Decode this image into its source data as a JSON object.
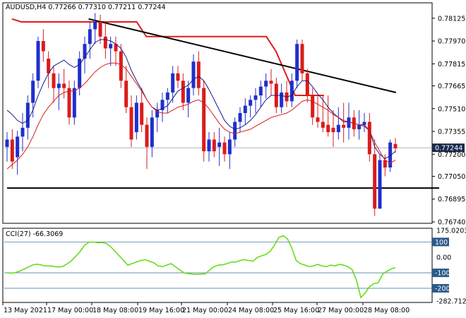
{
  "chart_data": [
    {
      "type": "candlestick",
      "header": "AUDUSD,H4 0.77266 0.77310 0.77211 0.77244",
      "current_price": "0.77244",
      "ylim": [
        0.7674,
        0.7822
      ],
      "y_ticks": [
        "0.78125",
        "0.77970",
        "0.77815",
        "0.77665",
        "0.77510",
        "0.77355",
        "0.77200",
        "0.77050",
        "0.76895",
        "0.76740"
      ],
      "x_ticks": [
        "13 May 2021",
        "17 May 00:00",
        "18 May 08:00",
        "19 May 16:00",
        "21 May 00:00",
        "24 May 08:00",
        "25 May 16:00",
        "27 May 00:00",
        "28 May 08:00"
      ],
      "colors": {
        "bull": "#1f2fcc",
        "bear": "#d91c1c",
        "ma_fast": "#1a1a8c",
        "ma_slow": "#d91c1c",
        "stop_line": "#e01c1c",
        "trendline": "#000000",
        "support": "#000000",
        "price_line": "#8899aa"
      },
      "candles": [
        [
          0.7725,
          0.7735,
          0.7715,
          0.773
        ],
        [
          0.773,
          0.7737,
          0.771,
          0.7715
        ],
        [
          0.7718,
          0.7736,
          0.7706,
          0.7732
        ],
        [
          0.7732,
          0.7748,
          0.7722,
          0.7738
        ],
        [
          0.7738,
          0.776,
          0.773,
          0.7755
        ],
        [
          0.7755,
          0.7775,
          0.7745,
          0.777
        ],
        [
          0.777,
          0.78,
          0.7765,
          0.7797
        ],
        [
          0.7797,
          0.7805,
          0.7783,
          0.779
        ],
        [
          0.7785,
          0.779,
          0.7765,
          0.7775
        ],
        [
          0.7775,
          0.778,
          0.7755,
          0.7765
        ],
        [
          0.7765,
          0.7775,
          0.775,
          0.7768
        ],
        [
          0.7768,
          0.7778,
          0.7758,
          0.7765
        ],
        [
          0.7765,
          0.777,
          0.774,
          0.7745
        ],
        [
          0.7745,
          0.777,
          0.774,
          0.7765
        ],
        [
          0.7765,
          0.779,
          0.776,
          0.7785
        ],
        [
          0.7785,
          0.78,
          0.7775,
          0.7795
        ],
        [
          0.7795,
          0.781,
          0.7785,
          0.7805
        ],
        [
          0.7805,
          0.7816,
          0.7795,
          0.781
        ],
        [
          0.781,
          0.7815,
          0.7795,
          0.78
        ],
        [
          0.78,
          0.781,
          0.7785,
          0.7792
        ],
        [
          0.7792,
          0.78,
          0.778,
          0.7795
        ],
        [
          0.7795,
          0.78,
          0.778,
          0.779
        ],
        [
          0.779,
          0.7795,
          0.7765,
          0.777
        ],
        [
          0.777,
          0.778,
          0.7748,
          0.7752
        ],
        [
          0.7752,
          0.776,
          0.7725,
          0.773
        ],
        [
          0.7735,
          0.776,
          0.773,
          0.7755
        ],
        [
          0.7755,
          0.7765,
          0.7735,
          0.774
        ],
        [
          0.774,
          0.7745,
          0.771,
          0.7725
        ],
        [
          0.7725,
          0.775,
          0.7718,
          0.7745
        ],
        [
          0.7745,
          0.7755,
          0.7735,
          0.775
        ],
        [
          0.775,
          0.7762,
          0.7742,
          0.7757
        ],
        [
          0.7757,
          0.7765,
          0.7748,
          0.7762
        ],
        [
          0.7762,
          0.778,
          0.7755,
          0.7775
        ],
        [
          0.7775,
          0.778,
          0.7765,
          0.777
        ],
        [
          0.777,
          0.7775,
          0.775,
          0.7755
        ],
        [
          0.7755,
          0.777,
          0.7745,
          0.7765
        ],
        [
          0.7765,
          0.7788,
          0.776,
          0.7783
        ],
        [
          0.7783,
          0.779,
          0.776,
          0.7765
        ],
        [
          0.7765,
          0.777,
          0.7715,
          0.7722
        ],
        [
          0.7722,
          0.7735,
          0.7715,
          0.773
        ],
        [
          0.773,
          0.7735,
          0.7718,
          0.7722
        ],
        [
          0.7725,
          0.7738,
          0.7712,
          0.7728
        ],
        [
          0.7728,
          0.7732,
          0.7715,
          0.772
        ],
        [
          0.772,
          0.7735,
          0.771,
          0.773
        ],
        [
          0.773,
          0.7745,
          0.7725,
          0.7742
        ],
        [
          0.7742,
          0.7752,
          0.7735,
          0.7748
        ],
        [
          0.7748,
          0.7758,
          0.774,
          0.7753
        ],
        [
          0.7753,
          0.776,
          0.7745,
          0.7757
        ],
        [
          0.7757,
          0.7765,
          0.7748,
          0.776
        ],
        [
          0.776,
          0.777,
          0.7752,
          0.7766
        ],
        [
          0.7766,
          0.7775,
          0.7758,
          0.777
        ],
        [
          0.777,
          0.7778,
          0.776,
          0.7768
        ],
        [
          0.7768,
          0.7772,
          0.7748,
          0.7752
        ],
        [
          0.7752,
          0.7768,
          0.7748,
          0.7762
        ],
        [
          0.7762,
          0.777,
          0.7752,
          0.7756
        ],
        [
          0.7756,
          0.7775,
          0.7752,
          0.777
        ],
        [
          0.777,
          0.7798,
          0.7765,
          0.7795
        ],
        [
          0.7795,
          0.7798,
          0.777,
          0.7775
        ],
        [
          0.7775,
          0.7778,
          0.7755,
          0.776
        ],
        [
          0.776,
          0.7765,
          0.774,
          0.7745
        ],
        [
          0.7745,
          0.776,
          0.7738,
          0.7742
        ],
        [
          0.7742,
          0.776,
          0.7735,
          0.7738
        ],
        [
          0.774,
          0.776,
          0.7732,
          0.7735
        ],
        [
          0.7738,
          0.775,
          0.7725,
          0.7735
        ],
        [
          0.7735,
          0.7752,
          0.773,
          0.774
        ],
        [
          0.774,
          0.7755,
          0.7728,
          0.7738
        ],
        [
          0.7738,
          0.7755,
          0.773,
          0.7745
        ],
        [
          0.7745,
          0.775,
          0.7732,
          0.7737
        ],
        [
          0.7737,
          0.775,
          0.773,
          0.774
        ],
        [
          0.774,
          0.7748,
          0.7735,
          0.7742
        ],
        [
          0.7742,
          0.7748,
          0.7715,
          0.772
        ],
        [
          0.772,
          0.773,
          0.7678,
          0.7683
        ],
        [
          0.7683,
          0.772,
          0.7683,
          0.7716
        ],
        [
          0.7716,
          0.772,
          0.7705,
          0.7711
        ],
        [
          0.7711,
          0.773,
          0.7708,
          0.7728
        ],
        [
          0.7727,
          0.7731,
          0.7721,
          0.7724
        ]
      ],
      "ma_fast": [
        0.775,
        0.7747,
        0.7743,
        0.7741,
        0.7743,
        0.775,
        0.776,
        0.7768,
        0.7775,
        0.778,
        0.7782,
        0.7784,
        0.7781,
        0.7779,
        0.7781,
        0.7786,
        0.7791,
        0.7796,
        0.7798,
        0.7798,
        0.7797,
        0.7795,
        0.7792,
        0.7786,
        0.7777,
        0.777,
        0.7764,
        0.7757,
        0.7752,
        0.775,
        0.7751,
        0.7753,
        0.7758,
        0.7763,
        0.7765,
        0.7767,
        0.7771,
        0.7773,
        0.777,
        0.7764,
        0.7757,
        0.775,
        0.7743,
        0.7739,
        0.7737,
        0.7738,
        0.774,
        0.7743,
        0.7747,
        0.7752,
        0.7757,
        0.776,
        0.776,
        0.776,
        0.7759,
        0.776,
        0.7766,
        0.777,
        0.777,
        0.7766,
        0.7761,
        0.7757,
        0.7752,
        0.7748,
        0.7745,
        0.7742,
        0.7742,
        0.7741,
        0.774,
        0.774,
        0.7736,
        0.7725,
        0.772,
        0.7717,
        0.7719,
        0.7722
      ],
      "ma_slow": [
        0.771,
        0.7713,
        0.7716,
        0.772,
        0.7725,
        0.7732,
        0.774,
        0.7747,
        0.7752,
        0.7756,
        0.776,
        0.7762,
        0.7763,
        0.7763,
        0.7765,
        0.7768,
        0.7772,
        0.7776,
        0.7779,
        0.7781,
        0.7782,
        0.7782,
        0.7781,
        0.7778,
        0.7773,
        0.7768,
        0.7763,
        0.7757,
        0.7752,
        0.7749,
        0.7748,
        0.7748,
        0.775,
        0.7752,
        0.7753,
        0.7754,
        0.7756,
        0.7757,
        0.7755,
        0.7751,
        0.7746,
        0.7741,
        0.7737,
        0.7735,
        0.7734,
        0.7735,
        0.7736,
        0.7737,
        0.7739,
        0.7741,
        0.7743,
        0.7745,
        0.7746,
        0.7747,
        0.7748,
        0.775,
        0.7753,
        0.7756,
        0.7757,
        0.7756,
        0.7754,
        0.7752,
        0.775,
        0.7747,
        0.7745,
        0.7743,
        0.7742,
        0.7741,
        0.774,
        0.7739,
        0.7736,
        0.7728,
        0.7722,
        0.7716,
        0.7714,
        0.7716
      ],
      "stop_line": [
        [
          1,
          0.7812
        ],
        [
          3,
          0.781
        ],
        [
          4,
          0.781
        ],
        [
          27,
          0.781
        ],
        [
          29,
          0.78
        ],
        [
          54,
          0.78
        ],
        [
          56,
          0.779
        ],
        [
          60,
          0.776
        ],
        [
          66,
          0.776
        ]
      ],
      "trendline": [
        [
          17,
          0.7812
        ],
        [
          81,
          0.7762
        ]
      ],
      "support": [
        [
          0,
          0.7697
        ],
        [
          40,
          0.7697
        ],
        [
          41,
          0.7697
        ],
        [
          90,
          0.7697
        ]
      ]
    },
    {
      "type": "line",
      "header": "CCI(27) -66.3069",
      "ylim": [
        -282.712,
        175.0203
      ],
      "y_ticks": [
        "175.0203",
        "0.00",
        "-282.712"
      ],
      "levels": [
        "100",
        "-100",
        "-200"
      ],
      "color": "#66dd1a",
      "values": [
        -100,
        -102,
        -98,
        -88,
        -75,
        -62,
        -48,
        -44,
        -50,
        -56,
        -54,
        -60,
        -62,
        -58,
        -40,
        -20,
        10,
        40,
        80,
        98,
        100,
        95,
        96,
        90,
        70,
        40,
        10,
        -20,
        -50,
        -40,
        -30,
        -20,
        -15,
        -25,
        -35,
        -55,
        -60,
        -50,
        -40,
        -60,
        -80,
        -100,
        -105,
        -108,
        -110,
        -108,
        -106,
        -80,
        -60,
        -50,
        -48,
        -40,
        -30,
        -30,
        -20,
        -15,
        -20,
        -25,
        0,
        10,
        20,
        40,
        80,
        130,
        140,
        120,
        60,
        -20,
        -40,
        -50,
        -60,
        -55,
        -45,
        -55,
        -60,
        -50,
        -55,
        -45,
        -50,
        -60,
        -80,
        -150,
        -260,
        -230,
        -190,
        -170,
        -165,
        -110,
        -90,
        -75,
        -66
      ]
    }
  ]
}
